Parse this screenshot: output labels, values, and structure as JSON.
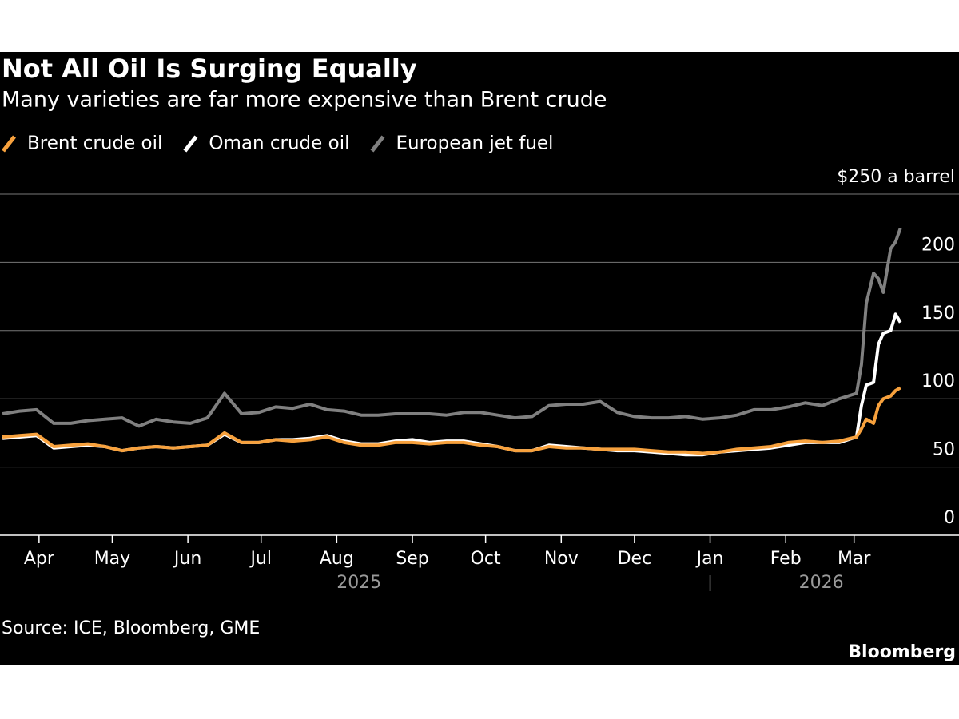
{
  "chart_data": {
    "type": "line",
    "title": "Not All Oil Is Surging Equally",
    "subtitle": "Many varieties are far more expensive than Brent crude",
    "source": "Source: ICE, Bloomberg, GME",
    "brand": "Bloomberg",
    "x": [
      "2025-03-17",
      "2025-03-24",
      "2025-03-31",
      "2025-04-07",
      "2025-04-14",
      "2025-04-21",
      "2025-04-28",
      "2025-05-05",
      "2025-05-12",
      "2025-05-19",
      "2025-05-26",
      "2025-06-02",
      "2025-06-09",
      "2025-06-16",
      "2025-06-23",
      "2025-06-30",
      "2025-07-07",
      "2025-07-14",
      "2025-07-21",
      "2025-07-28",
      "2025-08-04",
      "2025-08-11",
      "2025-08-18",
      "2025-08-25",
      "2025-09-01",
      "2025-09-08",
      "2025-09-15",
      "2025-09-22",
      "2025-09-29",
      "2025-10-06",
      "2025-10-13",
      "2025-10-20",
      "2025-10-27",
      "2025-11-03",
      "2025-11-10",
      "2025-11-17",
      "2025-11-24",
      "2025-12-01",
      "2025-12-08",
      "2025-12-15",
      "2025-12-22",
      "2025-12-29",
      "2026-01-05",
      "2026-01-12",
      "2026-01-19",
      "2026-01-26",
      "2026-02-02",
      "2026-02-09",
      "2026-02-16",
      "2026-02-23",
      "2026-03-02",
      "2026-03-04",
      "2026-03-06",
      "2026-03-09",
      "2026-03-11",
      "2026-03-13",
      "2026-03-16",
      "2026-03-18",
      "2026-03-20"
    ],
    "series": [
      {
        "name": "Brent crude oil",
        "color": "#f7a13d",
        "values": [
          72,
          73,
          74,
          65,
          66,
          67,
          65,
          62,
          64,
          65,
          64,
          65,
          66,
          75,
          68,
          68,
          70,
          69,
          70,
          72,
          68,
          66,
          66,
          68,
          68,
          67,
          68,
          68,
          66,
          65,
          62,
          62,
          65,
          64,
          64,
          63,
          63,
          63,
          62,
          61,
          61,
          60,
          61,
          63,
          64,
          65,
          68,
          69,
          68,
          69,
          72,
          78,
          85,
          82,
          95,
          100,
          102,
          106,
          108
        ]
      },
      {
        "name": "Oman crude oil",
        "color": "#ffffff",
        "values": [
          71,
          72,
          73,
          64,
          65,
          66,
          65,
          62,
          64,
          65,
          64,
          65,
          66,
          74,
          68,
          68,
          70,
          70,
          71,
          73,
          69,
          67,
          67,
          69,
          70,
          68,
          69,
          69,
          67,
          65,
          62,
          62,
          66,
          65,
          64,
          63,
          62,
          62,
          61,
          60,
          59,
          59,
          61,
          62,
          63,
          64,
          66,
          68,
          68,
          68,
          72,
          95,
          110,
          112,
          140,
          148,
          150,
          162,
          156
        ]
      },
      {
        "name": "European jet fuel",
        "color": "#808080",
        "values": [
          89,
          91,
          92,
          82,
          82,
          84,
          85,
          86,
          80,
          85,
          83,
          82,
          86,
          104,
          89,
          90,
          94,
          93,
          96,
          92,
          91,
          88,
          88,
          89,
          89,
          89,
          88,
          90,
          90,
          88,
          86,
          87,
          95,
          96,
          96,
          98,
          90,
          87,
          86,
          86,
          87,
          85,
          86,
          88,
          92,
          92,
          94,
          97,
          95,
          100,
          104,
          125,
          170,
          192,
          188,
          178,
          210,
          215,
          225
        ]
      }
    ],
    "xlim": [
      "2025-03-16",
      "2026-04-13"
    ],
    "xticks": [
      {
        "value": "2025-04-01",
        "label": "Apr"
      },
      {
        "value": "2025-05-01",
        "label": "May"
      },
      {
        "value": "2025-06-01",
        "label": "Jun"
      },
      {
        "value": "2025-07-01",
        "label": "Jul"
      },
      {
        "value": "2025-08-01",
        "label": "Aug"
      },
      {
        "value": "2025-09-01",
        "label": "Sep"
      },
      {
        "value": "2025-10-01",
        "label": "Oct"
      },
      {
        "value": "2025-11-01",
        "label": "Nov"
      },
      {
        "value": "2025-12-01",
        "label": "Dec"
      },
      {
        "value": "2026-01-01",
        "label": "Jan"
      },
      {
        "value": "2026-02-01",
        "label": "Feb"
      },
      {
        "value": "2026-03-01",
        "label": "Mar"
      }
    ],
    "years": [
      "2025",
      "2026"
    ],
    "ylim": [
      0,
      250
    ],
    "yticks": [
      0,
      50,
      100,
      150,
      200,
      {
        "value": 250,
        "label": "$250 a barrel"
      }
    ],
    "grid": true
  }
}
